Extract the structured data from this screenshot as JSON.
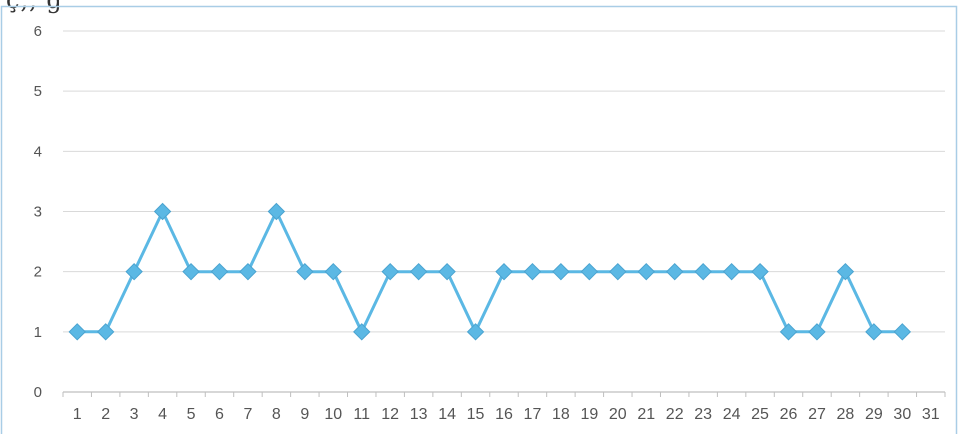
{
  "page": {
    "partial_title": "ç,, g"
  },
  "chart_data": {
    "type": "line",
    "title": "",
    "xlabel": "",
    "ylabel": "",
    "categories": [
      "1",
      "2",
      "3",
      "4",
      "5",
      "6",
      "7",
      "8",
      "9",
      "10",
      "11",
      "12",
      "13",
      "14",
      "15",
      "16",
      "17",
      "18",
      "19",
      "20",
      "21",
      "22",
      "23",
      "24",
      "25",
      "26",
      "27",
      "28",
      "29",
      "30",
      "31"
    ],
    "series": [
      {
        "values": [
          1,
          1,
          2,
          3,
          2,
          2,
          2,
          3,
          2,
          2,
          1,
          2,
          2,
          2,
          1,
          2,
          2,
          2,
          2,
          2,
          2,
          2,
          2,
          2,
          2,
          1,
          1,
          2,
          1,
          1,
          null
        ]
      }
    ],
    "ylim": [
      0,
      6
    ],
    "yticks": [
      0,
      1,
      2,
      3,
      4,
      5,
      6
    ],
    "grid": true,
    "legend": "none",
    "colors": {
      "line": "#5BB8E4",
      "marker": "#5BB8E4",
      "grid": "#D9D9D9",
      "axis": "#BFBFBF",
      "frame": "#A9CDE6"
    }
  }
}
